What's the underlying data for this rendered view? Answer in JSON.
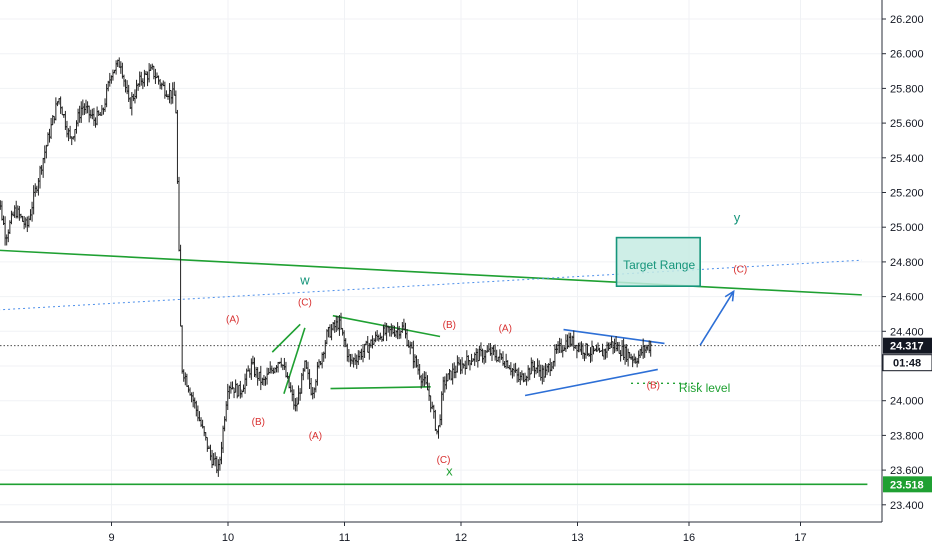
{
  "chart_data": {
    "type": "candlestick",
    "title": "",
    "xlabel": "",
    "ylabel": "",
    "ylim": [
      23.3,
      26.3
    ],
    "y_ticks": [
      "26.200",
      "26.000",
      "25.800",
      "25.600",
      "25.400",
      "25.200",
      "25.000",
      "24.800",
      "24.600",
      "24.400",
      "24.200",
      "24.000",
      "23.800",
      "23.600",
      "23.400"
    ],
    "x_ticks": [
      {
        "label": "9",
        "t": 1.0
      },
      {
        "label": "10",
        "t": 2.0
      },
      {
        "label": "11",
        "t": 3.0
      },
      {
        "label": "12",
        "t": 4.0
      },
      {
        "label": "13",
        "t": 5.0
      },
      {
        "label": "16",
        "t": 6.0
      },
      {
        "label": "17",
        "t": 7.0
      }
    ],
    "x_range": [
      0.0,
      7.55
    ],
    "grid": true,
    "current_price": {
      "value": "24.317",
      "countdown": "01:48",
      "level": 24.317
    },
    "support_price": {
      "value": "23.518",
      "level": 23.518
    },
    "price_path": [
      [
        0.0,
        25.3
      ],
      [
        0.1,
        24.95
      ],
      [
        0.18,
        25.1
      ],
      [
        0.28,
        25.0
      ],
      [
        0.4,
        25.35
      ],
      [
        0.55,
        25.75
      ],
      [
        0.65,
        25.5
      ],
      [
        0.75,
        25.7
      ],
      [
        0.85,
        25.62
      ],
      [
        0.92,
        25.65
      ],
      [
        1.0,
        25.9
      ],
      [
        1.08,
        25.95
      ],
      [
        1.15,
        25.7
      ],
      [
        1.25,
        25.85
      ],
      [
        1.35,
        25.9
      ],
      [
        1.45,
        25.8
      ],
      [
        1.55,
        25.75
      ],
      [
        1.6,
        24.2
      ],
      [
        1.68,
        24.05
      ],
      [
        1.75,
        23.9
      ],
      [
        1.85,
        23.68
      ],
      [
        1.92,
        23.6
      ],
      [
        2.0,
        24.1
      ],
      [
        2.1,
        24.05
      ],
      [
        2.2,
        24.2
      ],
      [
        2.3,
        24.1
      ],
      [
        2.45,
        24.25
      ],
      [
        2.58,
        23.95
      ],
      [
        2.66,
        24.2
      ],
      [
        2.72,
        24.05
      ],
      [
        2.85,
        24.38
      ],
      [
        2.95,
        24.45
      ],
      [
        3.05,
        24.22
      ],
      [
        3.15,
        24.28
      ],
      [
        3.3,
        24.38
      ],
      [
        3.5,
        24.42
      ],
      [
        3.62,
        24.2
      ],
      [
        3.72,
        24.05
      ],
      [
        3.8,
        23.8
      ],
      [
        3.85,
        24.1
      ],
      [
        3.95,
        24.18
      ],
      [
        4.1,
        24.25
      ],
      [
        4.25,
        24.28
      ],
      [
        4.4,
        24.22
      ],
      [
        4.5,
        24.12
      ],
      [
        4.62,
        24.2
      ],
      [
        4.72,
        24.15
      ],
      [
        4.82,
        24.28
      ],
      [
        4.92,
        24.35
      ],
      [
        5.05,
        24.3
      ],
      [
        5.2,
        24.26
      ],
      [
        5.3,
        24.33
      ],
      [
        5.42,
        24.28
      ],
      [
        5.52,
        24.24
      ],
      [
        5.6,
        24.3
      ],
      [
        5.66,
        24.32
      ]
    ],
    "trendlines": [
      {
        "name": "upper-green",
        "color": "#1fa032",
        "from": [
          -0.05,
          24.87
        ],
        "to": [
          7.55,
          24.61
        ]
      },
      {
        "name": "lower-green",
        "color": "#1fa032",
        "level": 23.518
      },
      {
        "name": "dotted-blue",
        "color": "#4d8fea",
        "dashed": true,
        "from": [
          -0.05,
          24.52
        ],
        "to": [
          7.55,
          24.81
        ]
      },
      {
        "name": "top-blue",
        "color": "#29a8f0",
        "from": [
          -0.05,
          26.37
        ],
        "to": [
          0.25,
          26.39
        ]
      },
      {
        "name": "w-line-1",
        "color": "#1fa032",
        "from": [
          2.38,
          24.28
        ],
        "to": [
          2.62,
          24.44
        ]
      },
      {
        "name": "w-line-2",
        "color": "#1fa032",
        "from": [
          2.48,
          24.04
        ],
        "to": [
          2.66,
          24.42
        ]
      },
      {
        "name": "x-upper",
        "color": "#1fa032",
        "from": [
          2.9,
          24.49
        ],
        "to": [
          3.82,
          24.37
        ]
      },
      {
        "name": "x-lower",
        "color": "#1fa032",
        "from": [
          2.88,
          24.07
        ],
        "to": [
          3.74,
          24.08
        ]
      },
      {
        "name": "tri-upper",
        "color": "#2d6fd6",
        "from": [
          4.88,
          24.41
        ],
        "to": [
          5.78,
          24.33
        ]
      },
      {
        "name": "tri-lower",
        "color": "#2d6fd6",
        "from": [
          4.55,
          24.03
        ],
        "to": [
          5.72,
          24.18
        ]
      },
      {
        "name": "risk-dotted",
        "color": "#1fa032",
        "dotted": true,
        "from": [
          5.48,
          24.1
        ],
        "to": [
          6.11,
          24.1
        ]
      }
    ],
    "target_box": {
      "label": "Target Range",
      "x": [
        5.35,
        6.1
      ],
      "y": [
        24.66,
        24.94
      ],
      "fill": "#c6ebe3",
      "stroke": "#16957b"
    },
    "arrow": {
      "from": [
        6.1,
        24.32
      ],
      "to": [
        6.4,
        24.63
      ],
      "color": "#2d6fd6"
    },
    "annotations": [
      {
        "text": "w",
        "t": 2.66,
        "y": 24.67,
        "color": "#16957b",
        "size": 13
      },
      {
        "text": "(C)",
        "t": 2.66,
        "y": 24.55,
        "color": "#d83030",
        "size": 10
      },
      {
        "text": "(A)",
        "t": 2.04,
        "y": 24.45,
        "color": "#d83030",
        "size": 10
      },
      {
        "text": "(B)",
        "t": 2.26,
        "y": 23.86,
        "color": "#d83030",
        "size": 10
      },
      {
        "text": "(A)",
        "t": 2.75,
        "y": 23.78,
        "color": "#d83030",
        "size": 10
      },
      {
        "text": "(B)",
        "t": 3.9,
        "y": 24.42,
        "color": "#d83030",
        "size": 10
      },
      {
        "text": "(A)",
        "t": 4.38,
        "y": 24.4,
        "color": "#d83030",
        "size": 10
      },
      {
        "text": "(C)",
        "t": 3.85,
        "y": 23.64,
        "color": "#d83030",
        "size": 10
      },
      {
        "text": "x",
        "t": 3.9,
        "y": 23.57,
        "color": "#1fa032",
        "size": 13
      },
      {
        "text": "(B)",
        "t": 5.68,
        "y": 24.07,
        "color": "#d83030",
        "size": 10
      },
      {
        "text": "Risk level",
        "t": 6.14,
        "y": 24.05,
        "color": "#1fa032",
        "size": 12
      },
      {
        "text": "y",
        "t": 6.43,
        "y": 25.03,
        "color": "#16957b",
        "size": 13
      },
      {
        "text": "(C)",
        "t": 6.46,
        "y": 24.74,
        "color": "#d83030",
        "size": 10
      }
    ]
  }
}
